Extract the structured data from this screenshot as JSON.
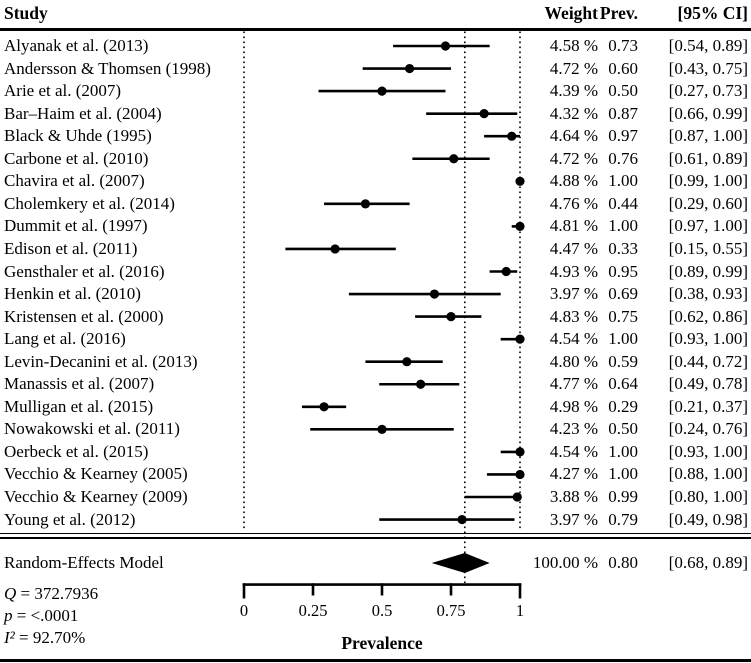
{
  "header": {
    "study": "Study",
    "weight": "Weight",
    "prev": "Prev.",
    "ci": "[95% CI]"
  },
  "colors": {
    "foreground": "#000000",
    "background": "#ffffff"
  },
  "chart_data": {
    "type": "forest",
    "xlabel": "Prevalence",
    "axis": {
      "label": "Prevalence",
      "min": 0,
      "max": 1,
      "ticks": [
        {
          "v": 0,
          "label": "0"
        },
        {
          "v": 0.25,
          "label": "0.25"
        },
        {
          "v": 0.5,
          "label": "0.5"
        },
        {
          "v": 0.75,
          "label": "0.75"
        },
        {
          "v": 1,
          "label": "1"
        }
      ]
    },
    "reference_lines": [
      0,
      0.8,
      1
    ],
    "studies": [
      {
        "label": "Alyanak et al. (2013)",
        "weight_pct": 4.58,
        "prev": 0.73,
        "ci": [
          0.54,
          0.89
        ],
        "weight_text": "4.58 %",
        "prev_text": "0.73",
        "ci_text": "[0.54, 0.89]"
      },
      {
        "label": "Andersson & Thomsen (1998)",
        "weight_pct": 4.72,
        "prev": 0.6,
        "ci": [
          0.43,
          0.75
        ],
        "weight_text": "4.72 %",
        "prev_text": "0.60",
        "ci_text": "[0.43, 0.75]"
      },
      {
        "label": "Arie et al. (2007)",
        "weight_pct": 4.39,
        "prev": 0.5,
        "ci": [
          0.27,
          0.73
        ],
        "weight_text": "4.39 %",
        "prev_text": "0.50",
        "ci_text": "[0.27, 0.73]"
      },
      {
        "label": "Bar–Haim et al. (2004)",
        "weight_pct": 4.32,
        "prev": 0.87,
        "ci": [
          0.66,
          0.99
        ],
        "weight_text": "4.32 %",
        "prev_text": "0.87",
        "ci_text": "[0.66, 0.99]"
      },
      {
        "label": "Black & Uhde (1995)",
        "weight_pct": 4.64,
        "prev": 0.97,
        "ci": [
          0.87,
          1.0
        ],
        "weight_text": "4.64 %",
        "prev_text": "0.97",
        "ci_text": "[0.87, 1.00]"
      },
      {
        "label": "Carbone et al. (2010)",
        "weight_pct": 4.72,
        "prev": 0.76,
        "ci": [
          0.61,
          0.89
        ],
        "weight_text": "4.72 %",
        "prev_text": "0.76",
        "ci_text": "[0.61, 0.89]"
      },
      {
        "label": "Chavira et al. (2007)",
        "weight_pct": 4.88,
        "prev": 1.0,
        "ci": [
          0.99,
          1.0
        ],
        "weight_text": "4.88 %",
        "prev_text": "1.00",
        "ci_text": "[0.99, 1.00]"
      },
      {
        "label": "Cholemkery et al. (2014)",
        "weight_pct": 4.76,
        "prev": 0.44,
        "ci": [
          0.29,
          0.6
        ],
        "weight_text": "4.76 %",
        "prev_text": "0.44",
        "ci_text": "[0.29, 0.60]"
      },
      {
        "label": "Dummit et al. (1997)",
        "weight_pct": 4.81,
        "prev": 1.0,
        "ci": [
          0.97,
          1.0
        ],
        "weight_text": "4.81 %",
        "prev_text": "1.00",
        "ci_text": "[0.97, 1.00]"
      },
      {
        "label": "Edison et al. (2011)",
        "weight_pct": 4.47,
        "prev": 0.33,
        "ci": [
          0.15,
          0.55
        ],
        "weight_text": "4.47 %",
        "prev_text": "0.33",
        "ci_text": "[0.15, 0.55]"
      },
      {
        "label": "Gensthaler et al. (2016)",
        "weight_pct": 4.93,
        "prev": 0.95,
        "ci": [
          0.89,
          0.99
        ],
        "weight_text": "4.93 %",
        "prev_text": "0.95",
        "ci_text": "[0.89, 0.99]"
      },
      {
        "label": "Henkin et al. (2010)",
        "weight_pct": 3.97,
        "prev": 0.69,
        "ci": [
          0.38,
          0.93
        ],
        "weight_text": "3.97 %",
        "prev_text": "0.69",
        "ci_text": "[0.38, 0.93]"
      },
      {
        "label": "Kristensen et al. (2000)",
        "weight_pct": 4.83,
        "prev": 0.75,
        "ci": [
          0.62,
          0.86
        ],
        "weight_text": "4.83 %",
        "prev_text": "0.75",
        "ci_text": "[0.62, 0.86]"
      },
      {
        "label": "Lang et al. (2016)",
        "weight_pct": 4.54,
        "prev": 1.0,
        "ci": [
          0.93,
          1.0
        ],
        "weight_text": "4.54 %",
        "prev_text": "1.00",
        "ci_text": "[0.93, 1.00]"
      },
      {
        "label": "Levin-Decanini et al. (2013)",
        "weight_pct": 4.8,
        "prev": 0.59,
        "ci": [
          0.44,
          0.72
        ],
        "weight_text": "4.80 %",
        "prev_text": "0.59",
        "ci_text": "[0.44, 0.72]"
      },
      {
        "label": "Manassis et al. (2007)",
        "weight_pct": 4.77,
        "prev": 0.64,
        "ci": [
          0.49,
          0.78
        ],
        "weight_text": "4.77 %",
        "prev_text": "0.64",
        "ci_text": "[0.49, 0.78]"
      },
      {
        "label": "Mulligan et al. (2015)",
        "weight_pct": 4.98,
        "prev": 0.29,
        "ci": [
          0.21,
          0.37
        ],
        "weight_text": "4.98 %",
        "prev_text": "0.29",
        "ci_text": "[0.21, 0.37]"
      },
      {
        "label": "Nowakowski et al. (2011)",
        "weight_pct": 4.23,
        "prev": 0.5,
        "ci": [
          0.24,
          0.76
        ],
        "weight_text": "4.23 %",
        "prev_text": "0.50",
        "ci_text": "[0.24, 0.76]"
      },
      {
        "label": "Oerbeck et al. (2015)",
        "weight_pct": 4.54,
        "prev": 1.0,
        "ci": [
          0.93,
          1.0
        ],
        "weight_text": "4.54 %",
        "prev_text": "1.00",
        "ci_text": "[0.93, 1.00]"
      },
      {
        "label": "Vecchio & Kearney (2005)",
        "weight_pct": 4.27,
        "prev": 1.0,
        "ci": [
          0.88,
          1.0
        ],
        "weight_text": "4.27 %",
        "prev_text": "1.00",
        "ci_text": "[0.88, 1.00]"
      },
      {
        "label": "Vecchio & Kearney (2009)",
        "weight_pct": 3.88,
        "prev": 0.99,
        "ci": [
          0.8,
          1.0
        ],
        "weight_text": "3.88 %",
        "prev_text": "0.99",
        "ci_text": "[0.80, 1.00]"
      },
      {
        "label": "Young et al. (2012)",
        "weight_pct": 3.97,
        "prev": 0.79,
        "ci": [
          0.49,
          0.98
        ],
        "weight_text": "3.97 %",
        "prev_text": "0.79",
        "ci_text": "[0.49, 0.98]"
      }
    ],
    "summary": {
      "label": "Random-Effects Model",
      "weight_pct": 100.0,
      "prev": 0.8,
      "ci": [
        0.68,
        0.89
      ],
      "weight_text": "100.00 %",
      "prev_text": "0.80",
      "ci_text": "[0.68, 0.89]"
    },
    "heterogeneity": [
      {
        "sym": "Q",
        "value": "372.7936"
      },
      {
        "sym": "p",
        "value": "<.0001"
      },
      {
        "sym": "I²",
        "value": "92.70%"
      }
    ]
  }
}
